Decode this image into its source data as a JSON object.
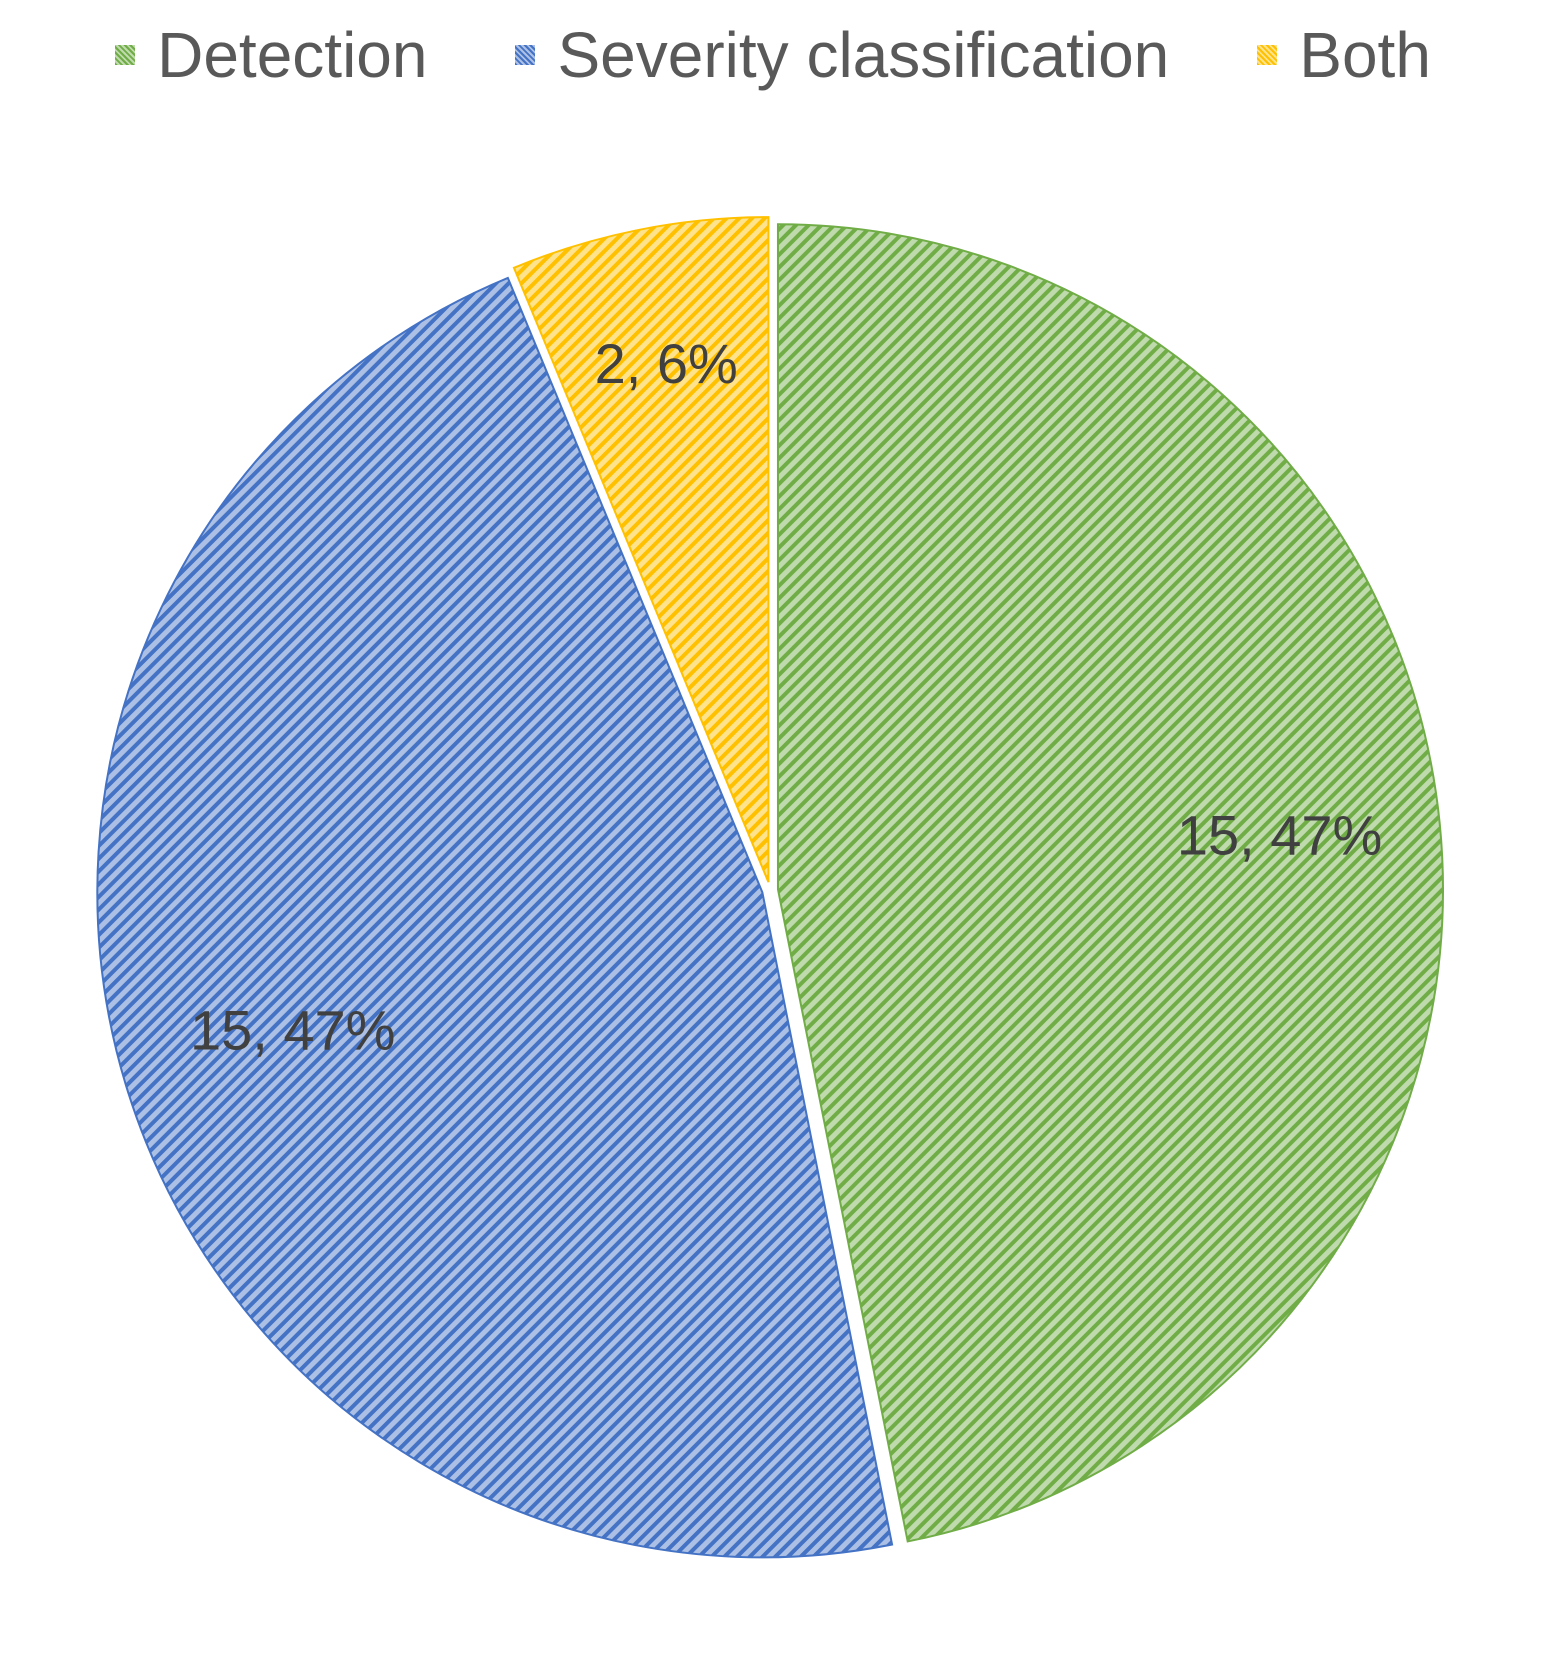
{
  "chart_data": {
    "type": "pie",
    "title": "",
    "legend_position": "top",
    "categories": [
      "Detection",
      "Severity classification",
      "Both"
    ],
    "values": [
      15,
      15,
      2
    ],
    "percentages": [
      47,
      47,
      6
    ],
    "labels": [
      "15, 47%",
      "15, 47%",
      "2, 6%"
    ],
    "colors": [
      "#70AD47",
      "#4472C4",
      "#FFC000"
    ],
    "pattern": "diagonal-hatch",
    "start_angle_deg": 0,
    "direction": "clockwise"
  }
}
